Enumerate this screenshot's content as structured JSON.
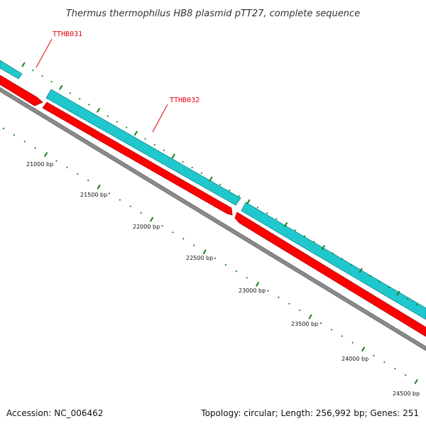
{
  "title": "Thermus thermophilus HB8 plasmid pTT27, complete sequence",
  "footer": {
    "accession": "Accession: NC_006462",
    "summary": "Topology: circular; Length: 256,992 bp; Genes: 251"
  },
  "colors": {
    "forward_gene": "#1fc8cd",
    "reverse_gene": "#ff0000",
    "backbone": "#8a8a8a",
    "tick": "#1a7a1a",
    "gene_label": "#e8000b"
  },
  "gene_labels": [
    {
      "name": "TTHB031",
      "strand": "forward"
    },
    {
      "name": "TTHB032",
      "strand": "forward"
    }
  ],
  "scale_labels": [
    "21000 bp",
    "21500 bp",
    "22000 bp",
    "22500 bp",
    "23000 bp",
    "23500 bp",
    "24000 bp",
    "24500 bp"
  ]
}
